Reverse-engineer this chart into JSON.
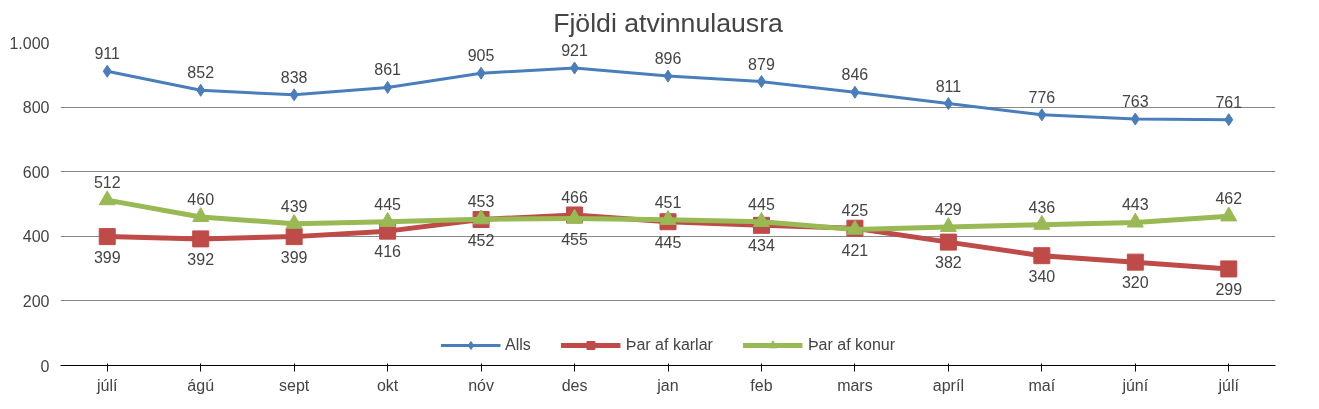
{
  "chart_data": {
    "type": "line",
    "title": "Fjöldi atvinnulausra",
    "categories": [
      "júlí",
      "ágú",
      "sept",
      "okt",
      "nóv",
      "des",
      "jan",
      "feb",
      "mars",
      "apríl",
      "maí",
      "júní",
      "júlí"
    ],
    "series": [
      {
        "name": "Alls",
        "color": "#4a7ebb",
        "marker": "diamond",
        "values": [
          911,
          852,
          838,
          861,
          905,
          921,
          896,
          879,
          846,
          811,
          776,
          763,
          761
        ]
      },
      {
        "name": "Þar af karlar",
        "color": "#be4b48",
        "marker": "square",
        "values": [
          399,
          392,
          399,
          416,
          452,
          466,
          445,
          434,
          425,
          382,
          340,
          320,
          299
        ]
      },
      {
        "name": "Þar af konur",
        "color": "#98b954",
        "marker": "triangle",
        "values": [
          512,
          460,
          439,
          445,
          453,
          455,
          451,
          445,
          421,
          429,
          436,
          443,
          462
        ]
      }
    ],
    "ylim": [
      0,
      1000
    ],
    "yticks": [
      0,
      200,
      400,
      600,
      800,
      {
        "value": 1000,
        "label": "1.000"
      }
    ],
    "grid": "y",
    "legend": "bottom",
    "data_labels": true
  }
}
